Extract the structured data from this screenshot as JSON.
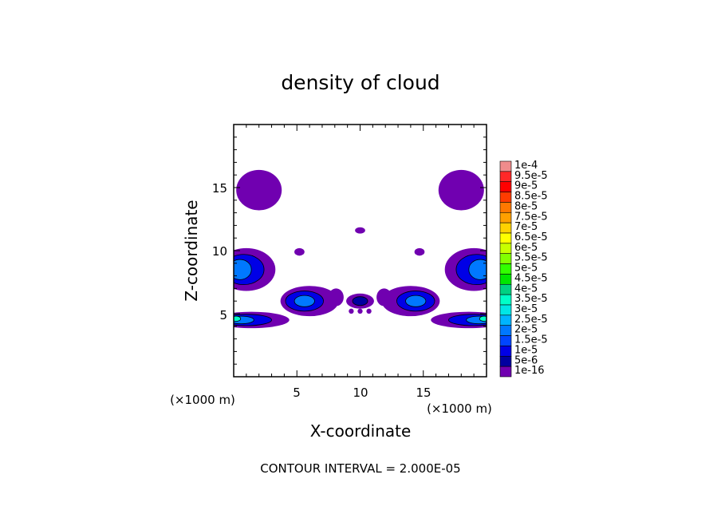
{
  "chart_data": {
    "type": "contour",
    "title": "density of cloud",
    "xlabel": "X-coordinate",
    "ylabel": "Z-coordinate",
    "x_unit": "(×1000 m)",
    "y_unit": "(×1000 m)",
    "xlim": [
      0,
      20
    ],
    "ylim": [
      0,
      20
    ],
    "x_ticks": [
      "5",
      "10",
      "15"
    ],
    "y_ticks": [
      "5",
      "10",
      "15"
    ],
    "footer": "CONTOUR INTERVAL = 2.000E-05",
    "colorbar": {
      "labels": [
        "1e-4",
        "9.5e-5",
        "9e-5",
        "8.5e-5",
        "8e-5",
        "7.5e-5",
        "7e-5",
        "6.5e-5",
        "6e-5",
        "5.5e-5",
        "5e-5",
        "4.5e-5",
        "4e-5",
        "3.5e-5",
        "3e-5",
        "2.5e-5",
        "2e-5",
        "1.5e-5",
        "1e-5",
        "5e-6",
        "1e-16"
      ],
      "colors": [
        "#f08c8c",
        "#ff2828",
        "#ff0000",
        "#ff3c00",
        "#ff7800",
        "#ffa000",
        "#ffd200",
        "#ffff00",
        "#c8ff00",
        "#82ff00",
        "#32ff00",
        "#00e600",
        "#00d282",
        "#00ffc8",
        "#00e6e6",
        "#00b4ff",
        "#0078ff",
        "#0046ff",
        "#0000e6",
        "#0000a0",
        "#7000b0"
      ]
    },
    "blobs": [
      {
        "cx": 2.0,
        "cy": 14.8,
        "rx": 1.8,
        "ry": 1.6,
        "level": 0
      },
      {
        "cx": 18.0,
        "cy": 14.8,
        "rx": 1.8,
        "ry": 1.6,
        "level": 0
      },
      {
        "cx": 10.0,
        "cy": 11.6,
        "rx": 0.4,
        "ry": 0.25,
        "level": 0
      },
      {
        "cx": 5.2,
        "cy": 9.9,
        "rx": 0.4,
        "ry": 0.3,
        "level": 0
      },
      {
        "cx": 14.7,
        "cy": 9.9,
        "rx": 0.4,
        "ry": 0.3,
        "level": 0
      },
      {
        "cx": 1.0,
        "cy": 8.5,
        "rx": 2.3,
        "ry": 1.7,
        "level": 0
      },
      {
        "cx": 0.8,
        "cy": 8.5,
        "rx": 1.6,
        "ry": 1.2,
        "level": 2
      },
      {
        "cx": 0.5,
        "cy": 8.5,
        "rx": 0.9,
        "ry": 0.8,
        "level": 4
      },
      {
        "cx": 19.0,
        "cy": 8.5,
        "rx": 2.3,
        "ry": 1.7,
        "level": 0
      },
      {
        "cx": 19.2,
        "cy": 8.5,
        "rx": 1.6,
        "ry": 1.2,
        "level": 2
      },
      {
        "cx": 19.5,
        "cy": 8.5,
        "rx": 0.9,
        "ry": 0.8,
        "level": 4
      },
      {
        "cx": 6.0,
        "cy": 6.0,
        "rx": 2.3,
        "ry": 1.2,
        "level": 0
      },
      {
        "cx": 5.6,
        "cy": 6.0,
        "rx": 1.5,
        "ry": 0.8,
        "level": 2
      },
      {
        "cx": 5.6,
        "cy": 6.0,
        "rx": 0.8,
        "ry": 0.45,
        "level": 4
      },
      {
        "cx": 14.0,
        "cy": 6.0,
        "rx": 2.3,
        "ry": 1.2,
        "level": 0
      },
      {
        "cx": 14.4,
        "cy": 6.0,
        "rx": 1.5,
        "ry": 0.8,
        "level": 2
      },
      {
        "cx": 14.4,
        "cy": 6.0,
        "rx": 0.8,
        "ry": 0.45,
        "level": 4
      },
      {
        "cx": 10.0,
        "cy": 6.0,
        "rx": 1.1,
        "ry": 0.6,
        "level": 0
      },
      {
        "cx": 10.0,
        "cy": 6.0,
        "rx": 0.6,
        "ry": 0.35,
        "level": 1
      },
      {
        "cx": 8.1,
        "cy": 6.3,
        "rx": 0.6,
        "ry": 0.7,
        "level": 0
      },
      {
        "cx": 11.9,
        "cy": 6.3,
        "rx": 0.6,
        "ry": 0.7,
        "level": 0
      },
      {
        "cx": 9.3,
        "cy": 5.2,
        "rx": 0.2,
        "ry": 0.2,
        "level": 0
      },
      {
        "cx": 10.0,
        "cy": 5.2,
        "rx": 0.2,
        "ry": 0.2,
        "level": 0
      },
      {
        "cx": 10.7,
        "cy": 5.2,
        "rx": 0.2,
        "ry": 0.2,
        "level": 0
      },
      {
        "cx": 1.4,
        "cy": 4.5,
        "rx": 3.0,
        "ry": 0.65,
        "level": 0
      },
      {
        "cx": 1.0,
        "cy": 4.5,
        "rx": 2.0,
        "ry": 0.45,
        "level": 2
      },
      {
        "cx": 0.6,
        "cy": 4.5,
        "rx": 1.0,
        "ry": 0.3,
        "level": 4
      },
      {
        "cx": 0.2,
        "cy": 4.6,
        "rx": 0.35,
        "ry": 0.2,
        "level": 7
      },
      {
        "cx": 18.6,
        "cy": 4.5,
        "rx": 3.0,
        "ry": 0.65,
        "level": 0
      },
      {
        "cx": 19.0,
        "cy": 4.5,
        "rx": 2.0,
        "ry": 0.45,
        "level": 2
      },
      {
        "cx": 19.4,
        "cy": 4.5,
        "rx": 1.0,
        "ry": 0.3,
        "level": 4
      },
      {
        "cx": 19.8,
        "cy": 4.6,
        "rx": 0.35,
        "ry": 0.2,
        "level": 7
      }
    ]
  }
}
